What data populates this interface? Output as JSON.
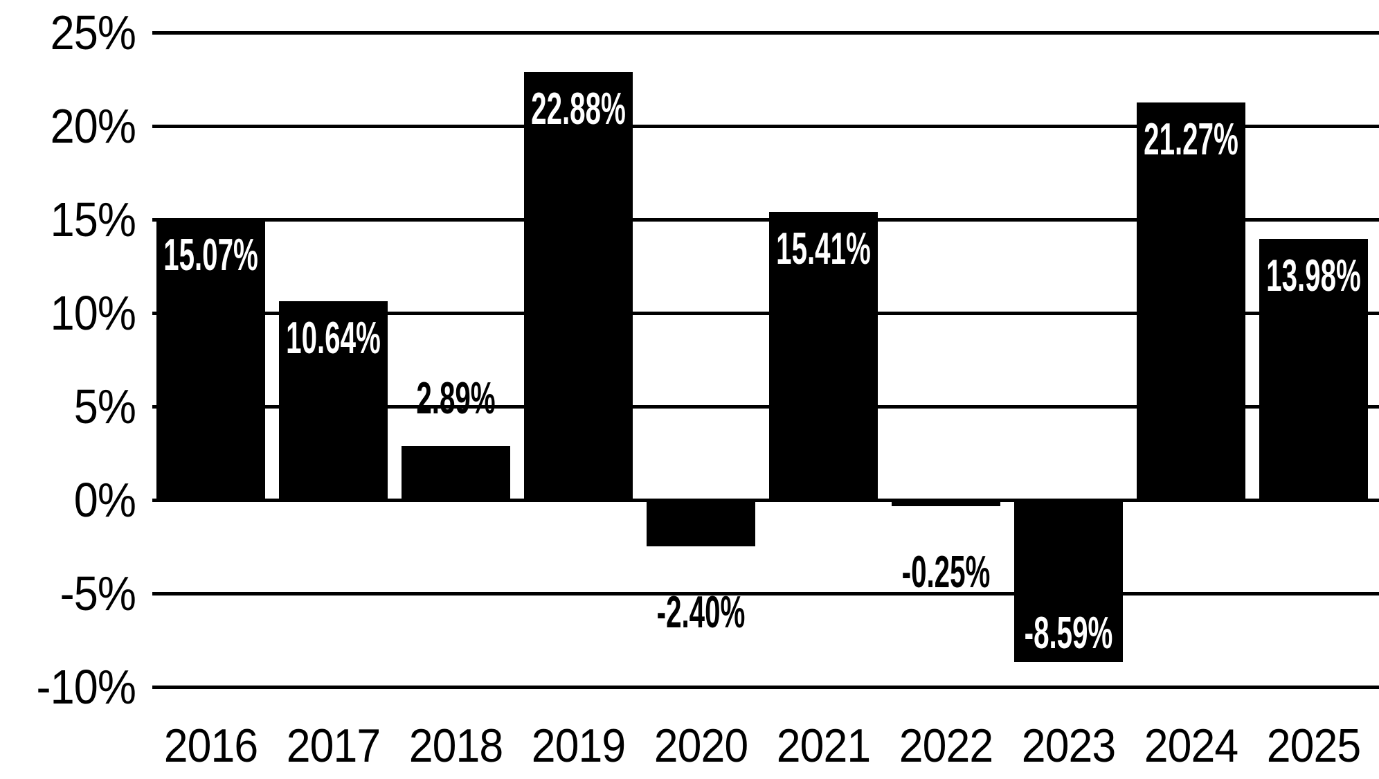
{
  "chart_data": {
    "type": "bar",
    "title": "",
    "xlabel": "",
    "ylabel": "",
    "categories": [
      "2016",
      "2017",
      "2018",
      "2019",
      "2020",
      "2021",
      "2022",
      "2023",
      "2024",
      "2025"
    ],
    "values": [
      15.07,
      10.64,
      2.89,
      22.88,
      -2.4,
      15.41,
      -0.25,
      -8.59,
      21.27,
      13.98
    ],
    "value_labels": [
      "15.07%",
      "10.64%",
      "2.89%",
      "22.88%",
      "-2.40%",
      "15.41%",
      "-0.25%",
      "-8.59%",
      "21.27%",
      "13.98%"
    ],
    "yticks": [
      25,
      20,
      15,
      10,
      5,
      0,
      -5,
      -10
    ],
    "ytick_labels": [
      "25%",
      "20%",
      "15%",
      "10%",
      "5%",
      "0%",
      "-5%",
      "-10%"
    ],
    "ylim": [
      -10,
      25
    ],
    "grid": true,
    "legend": false,
    "colors": {
      "background": "#ffffff",
      "bar": "#000000",
      "gridline": "#000000",
      "axis_text": "#000000",
      "label_inside_bar": "#ffffff",
      "label_outside_bar": "#000000"
    }
  }
}
